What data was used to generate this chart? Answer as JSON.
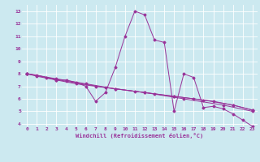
{
  "title": "",
  "xlabel": "Windchill (Refroidissement éolien,°C)",
  "background_color": "#cce9f0",
  "grid_color": "#ffffff",
  "line_color": "#993399",
  "xlim": [
    -0.5,
    23.5
  ],
  "ylim": [
    3.8,
    13.5
  ],
  "xticks": [
    0,
    1,
    2,
    3,
    4,
    5,
    6,
    7,
    8,
    9,
    10,
    11,
    12,
    13,
    14,
    15,
    16,
    17,
    18,
    19,
    20,
    21,
    22,
    23
  ],
  "yticks": [
    4,
    5,
    6,
    7,
    8,
    9,
    10,
    11,
    12,
    13
  ],
  "series": [
    {
      "x": [
        0,
        1,
        2,
        3,
        4,
        5,
        6,
        7,
        8,
        9,
        10,
        11,
        12,
        13,
        14,
        15,
        16,
        17,
        18,
        19,
        20,
        21,
        22,
        23
      ],
      "y": [
        8.0,
        7.9,
        7.7,
        7.5,
        7.5,
        7.3,
        7.0,
        5.8,
        6.5,
        8.5,
        11.0,
        13.0,
        12.7,
        10.7,
        10.5,
        5.0,
        8.0,
        7.7,
        5.3,
        5.4,
        5.2,
        4.8,
        4.3,
        3.8
      ]
    },
    {
      "x": [
        0,
        1,
        3,
        5,
        7,
        9,
        11,
        13,
        15,
        17,
        19,
        21,
        23
      ],
      "y": [
        8.0,
        7.8,
        7.5,
        7.2,
        7.0,
        6.8,
        6.6,
        6.4,
        6.2,
        6.0,
        5.8,
        5.5,
        5.1
      ]
    },
    {
      "x": [
        0,
        3,
        6,
        9,
        12,
        15,
        18,
        21,
        23
      ],
      "y": [
        8.0,
        7.6,
        7.2,
        6.8,
        6.5,
        6.2,
        5.9,
        5.5,
        5.1
      ]
    },
    {
      "x": [
        0,
        4,
        8,
        12,
        16,
        20,
        23
      ],
      "y": [
        8.0,
        7.4,
        6.9,
        6.5,
        6.0,
        5.5,
        5.0
      ]
    }
  ]
}
